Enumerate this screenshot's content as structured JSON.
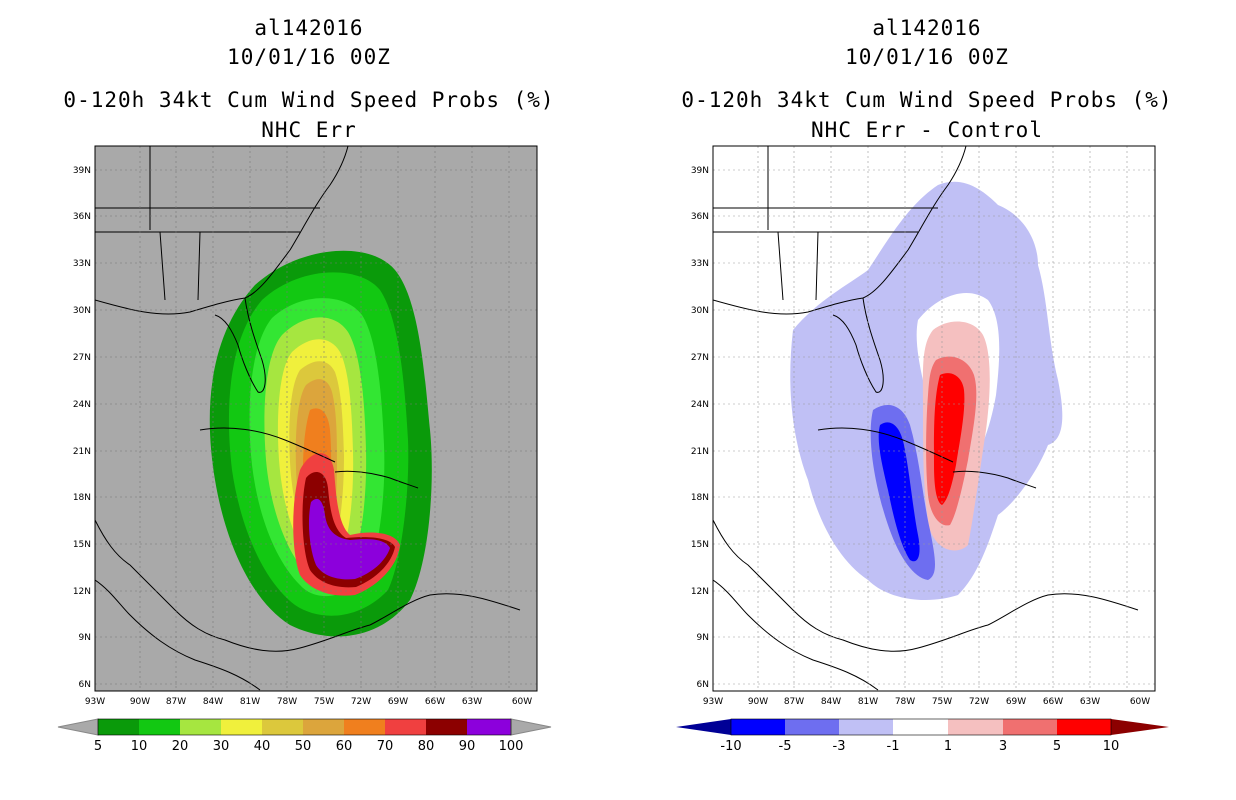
{
  "left_panel": {
    "storm_id": "al142016",
    "datetime": "10/01/16 00Z",
    "product": "0-120h 34kt Cum Wind Speed Probs (%)",
    "subtitle": "NHC Err",
    "background": "#a9a9a9",
    "colorbar": {
      "labels": [
        "5",
        "10",
        "20",
        "30",
        "40",
        "50",
        "60",
        "70",
        "80",
        "90",
        "100"
      ],
      "colors": [
        "#0a9a0a",
        "#12c812",
        "#33e633",
        "#a6e640",
        "#f0f03c",
        "#dcc83c",
        "#dca53c",
        "#f07f1e",
        "#f04040",
        "#8c0000",
        "#8c00dc"
      ]
    }
  },
  "right_panel": {
    "storm_id": "al142016",
    "datetime": "10/01/16 00Z",
    "product": "0-120h 34kt Cum Wind Speed Probs (%)",
    "subtitle": "NHC Err - Control",
    "background": "#ffffff",
    "colorbar": {
      "labels": [
        "-10",
        "-5",
        "-3",
        "-1",
        "1",
        "3",
        "5",
        "10"
      ],
      "colors": [
        "#000096",
        "#0000ff",
        "#6e6ef0",
        "#c0c0f5",
        "#ffffff",
        "#f5c0c0",
        "#f07070",
        "#ff0000",
        "#8c0000"
      ]
    }
  },
  "axes": {
    "lon_labels": [
      "93W",
      "90W",
      "87W",
      "84W",
      "81W",
      "78W",
      "75W",
      "72W",
      "69W",
      "66W",
      "63W",
      "60W"
    ],
    "lat_labels": [
      "39N",
      "36N",
      "33N",
      "30N",
      "27N",
      "24N",
      "21N",
      "18N",
      "15N",
      "12N",
      "9N",
      "6N"
    ]
  }
}
